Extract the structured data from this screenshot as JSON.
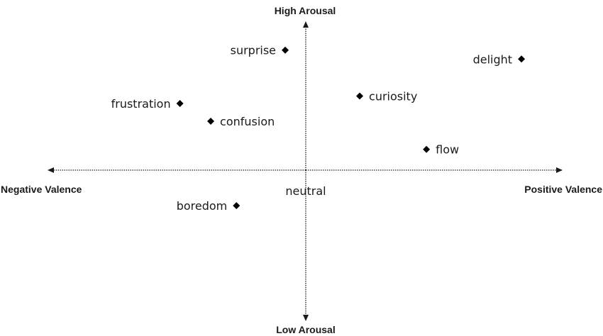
{
  "axes": {
    "x_negative": "Negative Valence",
    "x_positive": "Positive Valence",
    "y_positive": "High Arousal",
    "y_negative": "Low Arousal",
    "origin": "neutral"
  },
  "points": [
    {
      "name": "surprise-point",
      "label": "surprise",
      "valence": -0.08,
      "arousal": 0.81
    },
    {
      "name": "delight-point",
      "label": "delight",
      "valence": 0.84,
      "arousal": 0.75
    },
    {
      "name": "frustration-point",
      "label": "frustration",
      "valence": -0.49,
      "arousal": 0.45
    },
    {
      "name": "curiosity-point",
      "label": "curiosity",
      "valence": 0.21,
      "arousal": 0.5
    },
    {
      "name": "confusion-point",
      "label": "confusion",
      "valence": -0.37,
      "arousal": 0.33
    },
    {
      "name": "flow-point",
      "label": "flow",
      "valence": 0.47,
      "arousal": 0.14
    },
    {
      "name": "boredom-point",
      "label": "boredom",
      "valence": -0.27,
      "arousal": -0.24
    }
  ]
}
